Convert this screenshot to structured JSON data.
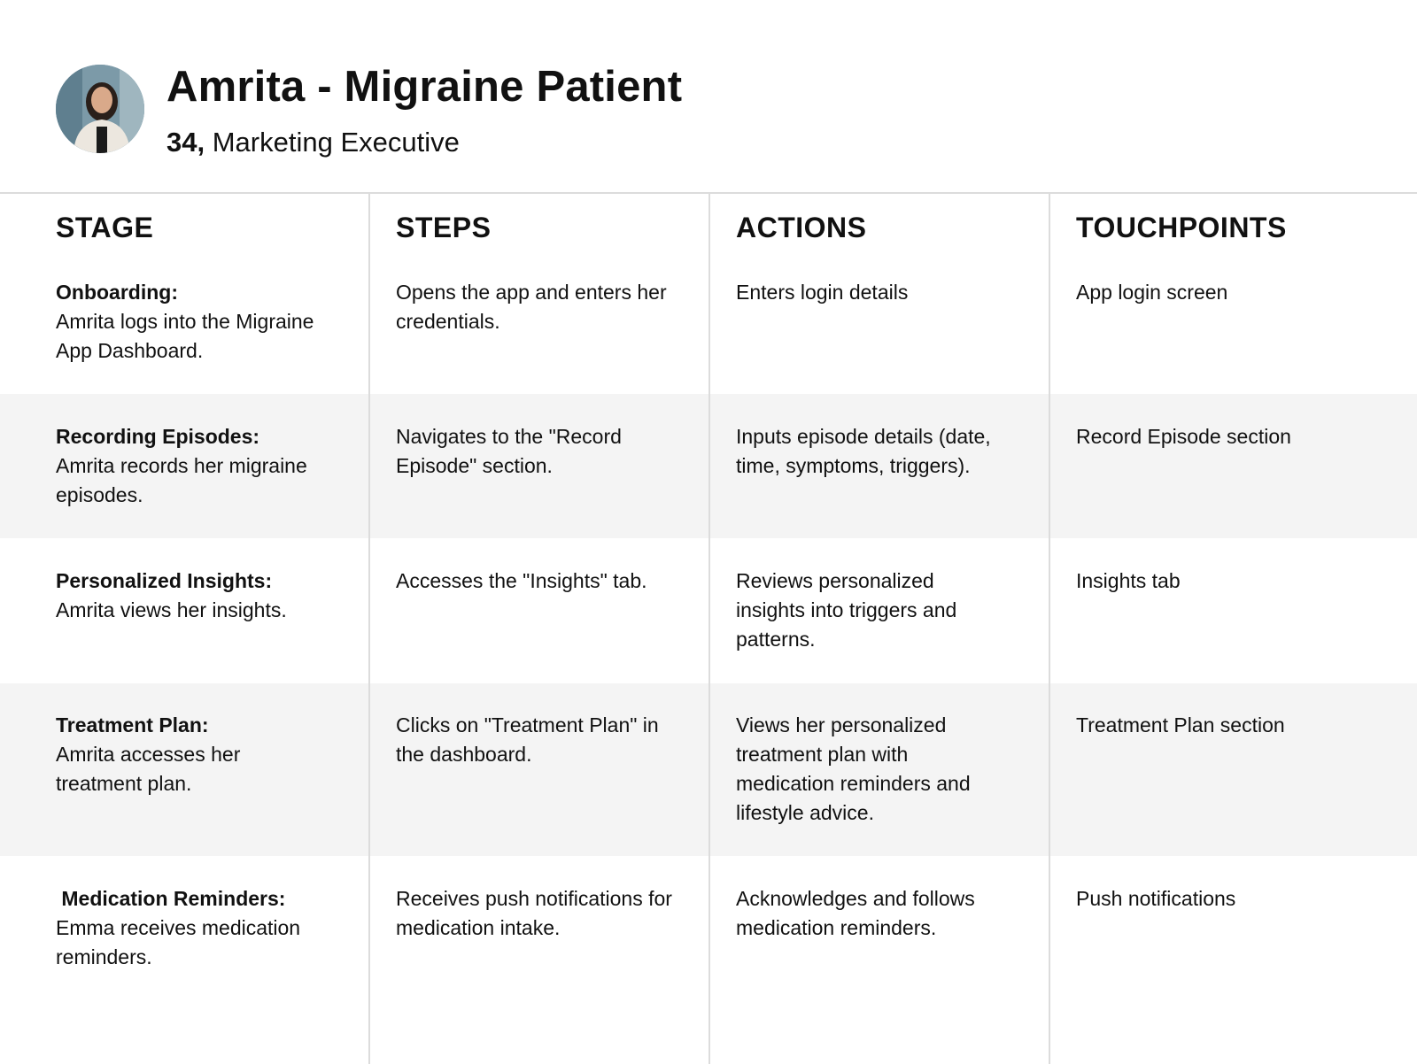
{
  "persona": {
    "title": "Amrita - Migraine Patient",
    "age": "34,",
    "occupation": "Marketing Executive"
  },
  "columns": [
    "STAGE",
    "STEPS",
    "ACTIONS",
    "TOUCHPOINTS"
  ],
  "rows": [
    {
      "stage_title": "Onboarding:",
      "stage_desc": "Amrita logs into the Migraine App Dashboard.",
      "steps": "Opens the app and enters her credentials.",
      "actions": "Enters login details",
      "touchpoints": "App login screen"
    },
    {
      "stage_title": "Recording Episodes:",
      "stage_desc": "Amrita records her migraine episodes.",
      "steps": "Navigates to the \"Record Episode\" section.",
      "actions": "Inputs episode details (date, time, symptoms, triggers).",
      "touchpoints": "Record Episode section"
    },
    {
      "stage_title": "Personalized Insights:",
      "stage_desc": "Amrita views her insights.",
      "steps": "Accesses the \"Insights\" tab.",
      "actions": "Reviews personalized insights into triggers and patterns.",
      "touchpoints": "Insights tab"
    },
    {
      "stage_title": "Treatment Plan:",
      "stage_desc": "Amrita accesses her treatment plan.",
      "steps": "Clicks on \"Treatment Plan\" in the dashboard.",
      "actions": "Views her personalized treatment plan with medication reminders and lifestyle advice.",
      "touchpoints": "Treatment Plan section"
    },
    {
      "stage_title": " Medication Reminders:",
      "stage_desc": "Emma receives medication reminders.",
      "steps": "Receives push notifications for medication intake.",
      "actions": "Acknowledges and follows medication reminders.",
      "touchpoints": "Push notifications"
    }
  ]
}
